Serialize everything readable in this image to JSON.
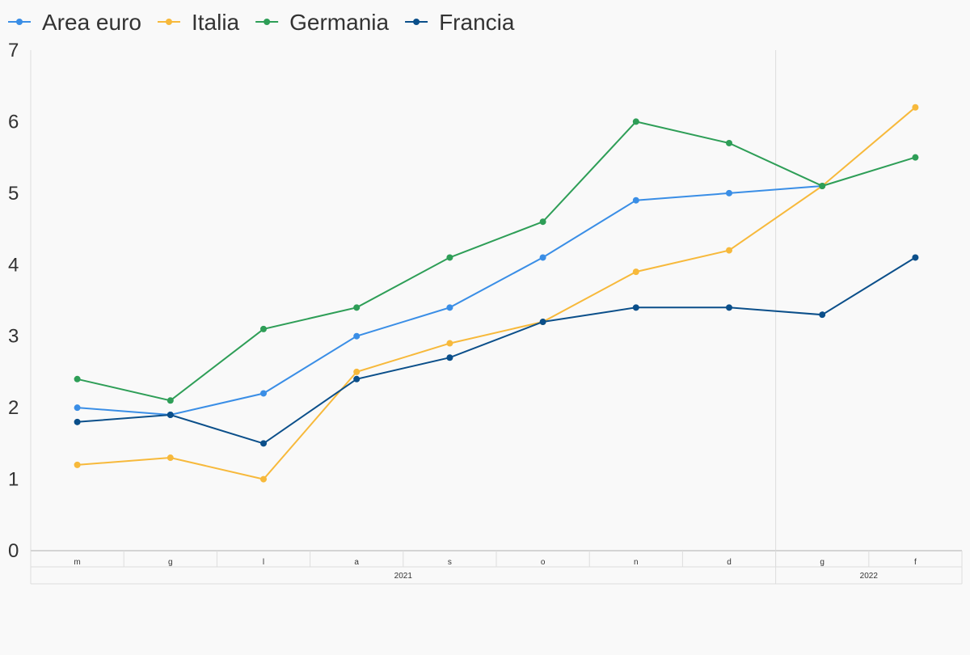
{
  "chart_data": {
    "type": "line",
    "title": "",
    "xlabel": "",
    "ylabel": "",
    "ylim": [
      0,
      7
    ],
    "yticks": [
      "0",
      "1",
      "2",
      "3",
      "4",
      "5",
      "6",
      "7"
    ],
    "grid": false,
    "legend_position": "top-left",
    "categories": [
      "m",
      "g",
      "l",
      "a",
      "s",
      "o",
      "n",
      "d",
      "g",
      "f"
    ],
    "year_groups": [
      {
        "label": "2021",
        "start": 0,
        "end": 7
      },
      {
        "label": "2022",
        "start": 8,
        "end": 9
      }
    ],
    "series": [
      {
        "name": "Area euro",
        "color": "#3a8ee6",
        "values": [
          2.0,
          1.9,
          2.2,
          3.0,
          3.4,
          4.1,
          4.9,
          5.0,
          5.1,
          null
        ]
      },
      {
        "name": "Italia",
        "color": "#f7b93b",
        "values": [
          1.2,
          1.3,
          1.0,
          2.5,
          2.9,
          3.2,
          3.9,
          4.2,
          5.1,
          6.2
        ]
      },
      {
        "name": "Germania",
        "color": "#2e9e57",
        "values": [
          2.4,
          2.1,
          3.1,
          3.4,
          4.1,
          4.6,
          6.0,
          5.7,
          5.1,
          5.5
        ]
      },
      {
        "name": "Francia",
        "color": "#0b4f8a",
        "values": [
          1.8,
          1.9,
          1.5,
          2.4,
          2.7,
          3.2,
          3.4,
          3.4,
          3.3,
          4.1
        ]
      }
    ]
  }
}
